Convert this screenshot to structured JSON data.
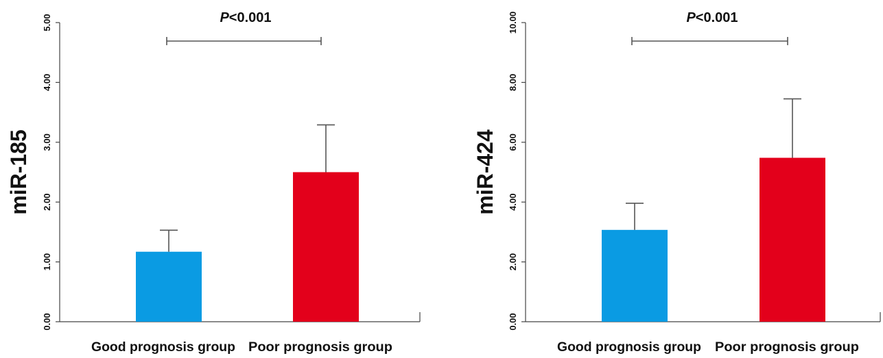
{
  "chart_data": [
    {
      "type": "bar",
      "ylabel": "miR-185",
      "categories": [
        "Good prognosis group",
        "Poor prognosis group"
      ],
      "values": [
        1.17,
        2.5
      ],
      "error_upper": [
        1.53,
        3.29
      ],
      "colors": [
        "#0a9be3",
        "#e3001b"
      ],
      "ylim": [
        0,
        5
      ],
      "yticks": [
        "0.00",
        "1.00",
        "2.00",
        "3.00",
        "4.00",
        "5.00"
      ],
      "significance": {
        "prefix": "P",
        "text": "<0.001",
        "between": [
          0,
          1
        ]
      },
      "grid": false
    },
    {
      "type": "bar",
      "ylabel": "miR-424",
      "categories": [
        "Good prognosis group",
        "Poor prognosis group"
      ],
      "values": [
        3.07,
        5.48
      ],
      "error_upper": [
        3.96,
        7.45
      ],
      "colors": [
        "#0a9be3",
        "#e3001b"
      ],
      "ylim": [
        0,
        10
      ],
      "yticks": [
        "0.00",
        "2.00",
        "4.00",
        "6.00",
        "8.00",
        "10.00"
      ],
      "significance": {
        "prefix": "P",
        "text": "<0.001",
        "between": [
          0,
          1
        ]
      },
      "grid": false
    }
  ]
}
